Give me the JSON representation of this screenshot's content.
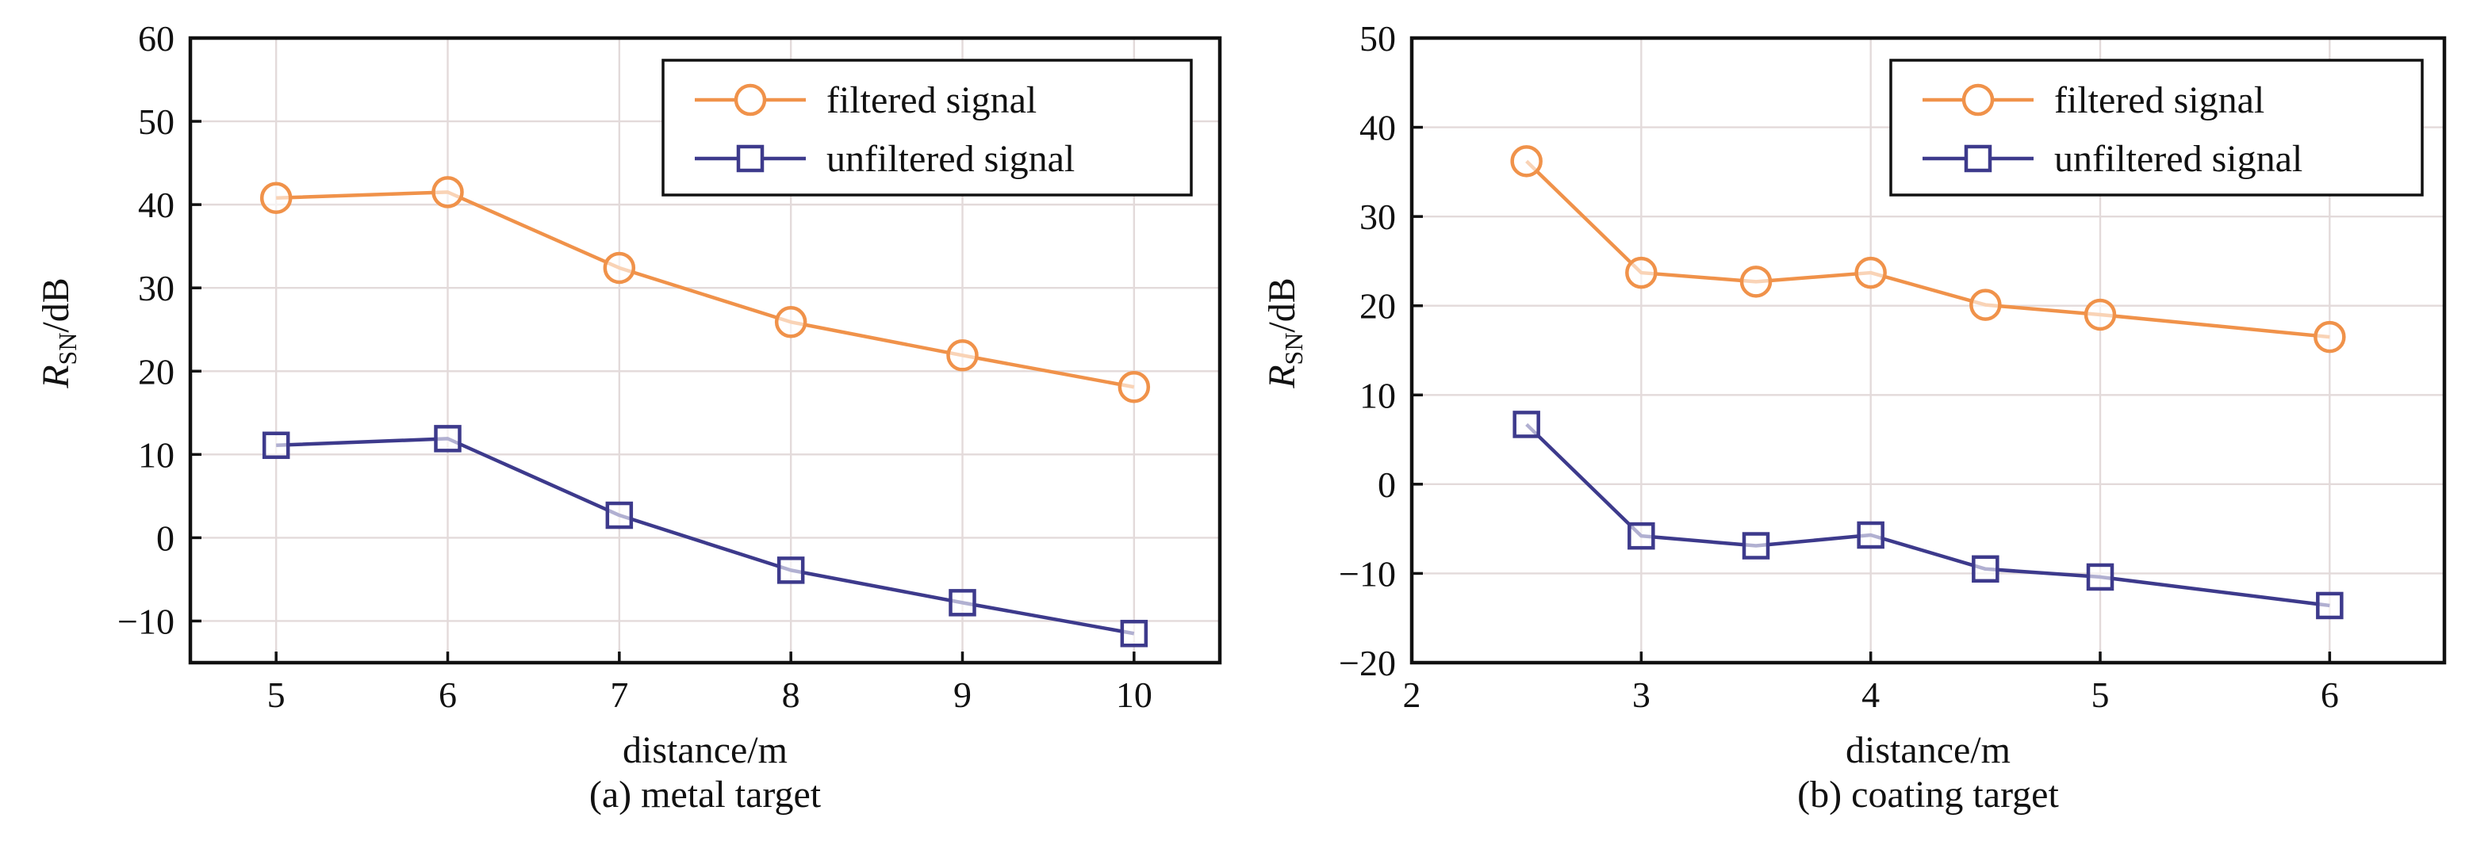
{
  "chart_data": [
    {
      "type": "line",
      "caption": "(a) metal target",
      "xlabel": "distance/m",
      "ylabel_main": "R",
      "ylabel_sub": "SN",
      "ylabel_unit": "/dB",
      "xlim": [
        4.5,
        10.5
      ],
      "ylim": [
        -15,
        60
      ],
      "xticks": [
        5,
        6,
        7,
        8,
        9,
        10
      ],
      "yticks": [
        -10,
        0,
        10,
        20,
        30,
        40,
        50,
        60
      ],
      "grid": true,
      "legend_position": "top-right",
      "x": [
        5,
        6,
        7,
        8,
        9,
        10
      ],
      "series": [
        {
          "name": "filtered signal",
          "marker": "circle",
          "color": "#f0924a",
          "values": [
            40.8,
            41.5,
            32.4,
            25.9,
            21.9,
            18.1
          ]
        },
        {
          "name": "unfiltered signal",
          "marker": "square",
          "color": "#3d3a8c",
          "values": [
            11.1,
            11.9,
            2.7,
            -3.9,
            -7.8,
            -11.5
          ]
        }
      ]
    },
    {
      "type": "line",
      "caption": "(b) coating target",
      "xlabel": "distance/m",
      "ylabel_main": "R",
      "ylabel_sub": "SN",
      "ylabel_unit": "/dB",
      "xlim": [
        2,
        6.5
      ],
      "ylim": [
        -20,
        50
      ],
      "xticks": [
        2,
        3,
        4,
        5,
        6
      ],
      "yticks": [
        -20,
        -10,
        0,
        10,
        20,
        30,
        40,
        50
      ],
      "grid": true,
      "legend_position": "top-right",
      "x": [
        2.5,
        3,
        3.5,
        4,
        4.5,
        5,
        6
      ],
      "series": [
        {
          "name": "filtered signal",
          "marker": "circle",
          "color": "#f0924a",
          "values": [
            36.2,
            23.7,
            22.7,
            23.7,
            20.1,
            19.0,
            16.5
          ]
        },
        {
          "name": "unfiltered signal",
          "marker": "square",
          "color": "#3d3a8c",
          "values": [
            6.7,
            -5.8,
            -6.9,
            -5.7,
            -9.5,
            -10.4,
            -13.6
          ]
        }
      ]
    }
  ]
}
